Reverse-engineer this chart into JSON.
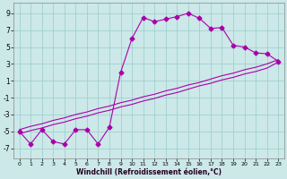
{
  "bg_color": "#cce8e8",
  "line_color": "#aa00aa",
  "grid_color": "#99cccc",
  "xlabel": "Windchill (Refroidissement éolien,°C)",
  "ylabel_ticks": [
    -7,
    -5,
    -3,
    -1,
    1,
    3,
    5,
    7,
    9
  ],
  "xlim": [
    -0.5,
    23.5
  ],
  "ylim": [
    -8.2,
    10.2
  ],
  "x_ticks": [
    0,
    1,
    2,
    3,
    4,
    5,
    6,
    7,
    8,
    9,
    10,
    11,
    12,
    13,
    14,
    15,
    16,
    17,
    18,
    19,
    20,
    21,
    22,
    23
  ],
  "series1_x": [
    0,
    1,
    2,
    3,
    4,
    5,
    6,
    7,
    8,
    9,
    10,
    11,
    12,
    13,
    14,
    15,
    16,
    17,
    18,
    19,
    20,
    21,
    22,
    23
  ],
  "series1_y": [
    -5.0,
    -6.5,
    -4.8,
    -6.2,
    -6.5,
    -4.8,
    -4.8,
    -6.5,
    -4.5,
    2.0,
    6.0,
    8.5,
    8.0,
    8.3,
    8.6,
    9.0,
    8.4,
    7.2,
    7.3,
    5.2,
    5.0,
    4.3,
    4.2,
    3.3
  ],
  "series2_x": [
    0,
    1,
    2,
    3,
    4,
    5,
    6,
    7,
    8,
    9,
    10,
    11,
    12,
    13,
    14,
    15,
    16,
    17,
    18,
    19,
    20,
    21,
    22,
    23
  ],
  "series2_y": [
    -5.3,
    -4.9,
    -4.6,
    -4.2,
    -3.9,
    -3.5,
    -3.2,
    -2.8,
    -2.5,
    -2.1,
    -1.8,
    -1.4,
    -1.1,
    -0.7,
    -0.4,
    0.0,
    0.4,
    0.7,
    1.1,
    1.4,
    1.8,
    2.1,
    2.5,
    3.2
  ],
  "series3_x": [
    0,
    1,
    2,
    3,
    4,
    5,
    6,
    7,
    8,
    9,
    10,
    11,
    12,
    13,
    14,
    15,
    16,
    17,
    18,
    19,
    20,
    21,
    22,
    23
  ],
  "series3_y": [
    -4.8,
    -4.4,
    -4.1,
    -3.7,
    -3.4,
    -3.0,
    -2.7,
    -2.3,
    -2.0,
    -1.6,
    -1.3,
    -0.9,
    -0.6,
    -0.2,
    0.1,
    0.5,
    0.8,
    1.2,
    1.6,
    1.9,
    2.3,
    2.6,
    3.0,
    3.5
  ],
  "marker": "D",
  "markersize": 2.5,
  "linewidth": 0.8
}
